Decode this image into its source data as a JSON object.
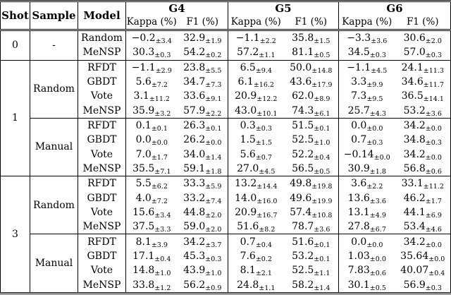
{
  "table": {
    "headers": {
      "shot": "Shot",
      "sample": "Sample",
      "model": "Model"
    },
    "groups": [
      "G4",
      "G5",
      "G6"
    ],
    "subheaders": [
      "Kappa (%)",
      "F1 (%)"
    ],
    "blocks": [
      {
        "shot": "0",
        "samples": [
          {
            "sample": "-",
            "rows": [
              {
                "model": "Random",
                "cells": [
                  [
                    "−0.2",
                    "±3.4"
                  ],
                  [
                    "32.9",
                    "±1.9"
                  ],
                  [
                    "−1.1",
                    "±2.2"
                  ],
                  [
                    "35.8",
                    "±1.5"
                  ],
                  [
                    "−3.3",
                    "±3.6"
                  ],
                  [
                    "30.6",
                    "±2.0"
                  ]
                ]
              },
              {
                "model": "MeNSP",
                "cells": [
                  [
                    "30.3",
                    "±0.3"
                  ],
                  [
                    "54.2",
                    "±0.2"
                  ],
                  [
                    "57.2",
                    "±1.1"
                  ],
                  [
                    "81.1",
                    "±0.5"
                  ],
                  [
                    "34.5",
                    "±0.3"
                  ],
                  [
                    "57.0",
                    "±0.3"
                  ]
                ]
              }
            ]
          }
        ]
      },
      {
        "shot": "1",
        "samples": [
          {
            "sample": "Random",
            "rows": [
              {
                "model": "RFDT",
                "cells": [
                  [
                    "−1.1",
                    "±2.9"
                  ],
                  [
                    "23.8",
                    "±5.5"
                  ],
                  [
                    "6.5",
                    "±9.4"
                  ],
                  [
                    "50.0",
                    "±14.8"
                  ],
                  [
                    "−1.1",
                    "±4.5"
                  ],
                  [
                    "24.1",
                    "±11.3"
                  ]
                ]
              },
              {
                "model": "GBDT",
                "cells": [
                  [
                    "5.6",
                    "±7.2"
                  ],
                  [
                    "34.7",
                    "±7.3"
                  ],
                  [
                    "6.1",
                    "±16.2"
                  ],
                  [
                    "43.6",
                    "±17.9"
                  ],
                  [
                    "3.3",
                    "±9.9"
                  ],
                  [
                    "34.6",
                    "±11.7"
                  ]
                ]
              },
              {
                "model": "Vote",
                "cells": [
                  [
                    "3.1",
                    "±11.2"
                  ],
                  [
                    "33.6",
                    "±9.1"
                  ],
                  [
                    "20.9",
                    "±12.2"
                  ],
                  [
                    "62.0",
                    "±8.9"
                  ],
                  [
                    "7.3",
                    "±9.5"
                  ],
                  [
                    "36.5",
                    "±14.1"
                  ]
                ]
              },
              {
                "model": "MeNSP",
                "cells": [
                  [
                    "35.9",
                    "±3.2"
                  ],
                  [
                    "57.9",
                    "±2.2"
                  ],
                  [
                    "43.0",
                    "±10.1"
                  ],
                  [
                    "74.3",
                    "±6.1"
                  ],
                  [
                    "25.7",
                    "±4.3"
                  ],
                  [
                    "53.2",
                    "±3.6"
                  ]
                ]
              }
            ]
          },
          {
            "sample": "Manual",
            "rows": [
              {
                "model": "RFDT",
                "cells": [
                  [
                    "0.1",
                    "±0.1"
                  ],
                  [
                    "26.3",
                    "±0.1"
                  ],
                  [
                    "0.3",
                    "±0.3"
                  ],
                  [
                    "51.5",
                    "±0.1"
                  ],
                  [
                    "0.0",
                    "±0.0"
                  ],
                  [
                    "34.2",
                    "±0.0"
                  ]
                ]
              },
              {
                "model": "GBDT",
                "cells": [
                  [
                    "0.0",
                    "±0.0"
                  ],
                  [
                    "26.2",
                    "±0.0"
                  ],
                  [
                    "1.5",
                    "±1.5"
                  ],
                  [
                    "52.5",
                    "±1.0"
                  ],
                  [
                    "0.7",
                    "±0.3"
                  ],
                  [
                    "34.8",
                    "±0.3"
                  ]
                ]
              },
              {
                "model": "Vote",
                "cells": [
                  [
                    "7.0",
                    "±1.7"
                  ],
                  [
                    "34.0",
                    "±1.4"
                  ],
                  [
                    "5.6",
                    "±0.7"
                  ],
                  [
                    "52.2",
                    "±0.4"
                  ],
                  [
                    "−0.14",
                    "±0.0"
                  ],
                  [
                    "34.2",
                    "±0.0"
                  ]
                ]
              },
              {
                "model": "MeNSP",
                "cells": [
                  [
                    "35.5",
                    "±7.1"
                  ],
                  [
                    "59.1",
                    "±1.8"
                  ],
                  [
                    "27.0",
                    "±4.5"
                  ],
                  [
                    "56.5",
                    "±0.5"
                  ],
                  [
                    "30.9",
                    "±1.8"
                  ],
                  [
                    "56.8",
                    "±0.6"
                  ]
                ]
              }
            ]
          }
        ]
      },
      {
        "shot": "3",
        "samples": [
          {
            "sample": "Random",
            "rows": [
              {
                "model": "RFDT",
                "cells": [
                  [
                    "5.5",
                    "±6.2"
                  ],
                  [
                    "33.3",
                    "±5.9"
                  ],
                  [
                    "13.2",
                    "±14.4"
                  ],
                  [
                    "49.8",
                    "±19.8"
                  ],
                  [
                    "3.6",
                    "±2.2"
                  ],
                  [
                    "33.1",
                    "±11.2"
                  ]
                ]
              },
              {
                "model": "GBDT",
                "cells": [
                  [
                    "4.0",
                    "±7.2"
                  ],
                  [
                    "33.2",
                    "±7.4"
                  ],
                  [
                    "14.0",
                    "±16.0"
                  ],
                  [
                    "49.6",
                    "±19.9"
                  ],
                  [
                    "13.6",
                    "±3.6"
                  ],
                  [
                    "46.2",
                    "±1.7"
                  ]
                ]
              },
              {
                "model": "Vote",
                "cells": [
                  [
                    "15.6",
                    "±3.4"
                  ],
                  [
                    "44.8",
                    "±2.0"
                  ],
                  [
                    "20.9",
                    "±16.7"
                  ],
                  [
                    "57.4",
                    "±10.8"
                  ],
                  [
                    "13.1",
                    "±4.9"
                  ],
                  [
                    "44.1",
                    "±6.9"
                  ]
                ]
              },
              {
                "model": "MeNSP",
                "cells": [
                  [
                    "37.5",
                    "±3.3"
                  ],
                  [
                    "59.0",
                    "±2.0"
                  ],
                  [
                    "51.6",
                    "±8.2"
                  ],
                  [
                    "78.7",
                    "±3.6"
                  ],
                  [
                    "27.8",
                    "±6.7"
                  ],
                  [
                    "53.4",
                    "±4.6"
                  ]
                ]
              }
            ]
          },
          {
            "sample": "Manual",
            "rows": [
              {
                "model": "RFDT",
                "cells": [
                  [
                    "8.1",
                    "±3.9"
                  ],
                  [
                    "34.2",
                    "±3.7"
                  ],
                  [
                    "0.7",
                    "±0.4"
                  ],
                  [
                    "51.6",
                    "±0.1"
                  ],
                  [
                    "0.0",
                    "±0.0"
                  ],
                  [
                    "34.2",
                    "±0.0"
                  ]
                ]
              },
              {
                "model": "GBDT",
                "cells": [
                  [
                    "17.1",
                    "±0.4"
                  ],
                  [
                    "45.3",
                    "±0.3"
                  ],
                  [
                    "7.6",
                    "±0.2"
                  ],
                  [
                    "53.2",
                    "±0.1"
                  ],
                  [
                    "1.03",
                    "±0.0"
                  ],
                  [
                    "35.64",
                    "±0.0"
                  ]
                ]
              },
              {
                "model": "Vote",
                "cells": [
                  [
                    "14.8",
                    "±1.0"
                  ],
                  [
                    "43.9",
                    "±1.0"
                  ],
                  [
                    "8.1",
                    "±2.1"
                  ],
                  [
                    "52.5",
                    "±1.1"
                  ],
                  [
                    "7.83",
                    "±0.6"
                  ],
                  [
                    "40.07",
                    "±0.4"
                  ]
                ]
              },
              {
                "model": "MeNSP",
                "cells": [
                  [
                    "33.8",
                    "±1.2"
                  ],
                  [
                    "56.2",
                    "±0.9"
                  ],
                  [
                    "24.8",
                    "±1.1"
                  ],
                  [
                    "58.2",
                    "±1.4"
                  ],
                  [
                    "30.1",
                    "±0.5"
                  ],
                  [
                    "56.9",
                    "±0.3"
                  ]
                ]
              }
            ]
          }
        ]
      }
    ]
  }
}
